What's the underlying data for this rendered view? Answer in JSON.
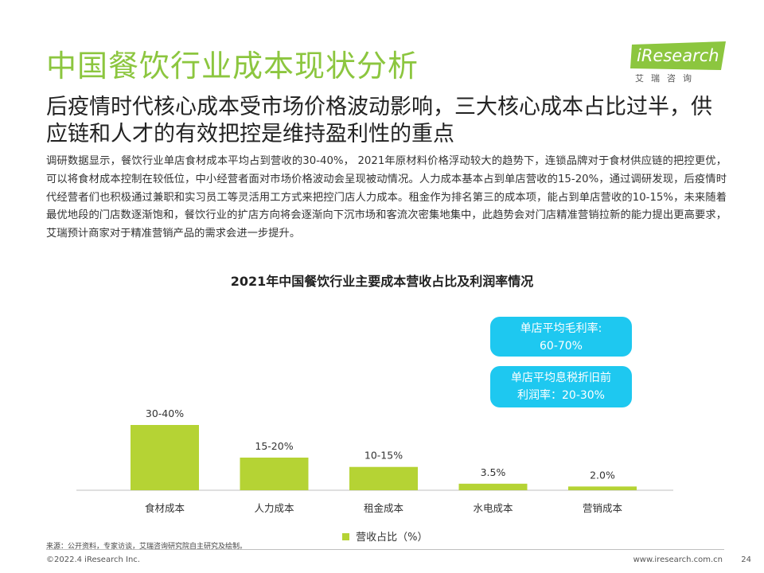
{
  "slide": {
    "title": "中国餐饮行业成本现状分析",
    "logo_brand": "iResearch",
    "logo_sub": "艾瑞咨询",
    "headline": "后疫情时代核心成本受市场价格波动影响，三大核心成本占比过半，供应链和人才的有效把控是维持盈利性的重点",
    "body": "调研数据显示，餐饮行业单店食材成本平均占到营收的30-40%，  2021年原材料价格浮动较大的趋势下，连锁品牌对于食材供应链的把控更优，可以将食材成本控制在较低位，中小经营者面对市场价格波动会呈现被动情况。人力成本基本占到单店营收的15-20%，通过调研发现，后疫情时代经营者们也积极通过兼职和实习员工等灵活用工方式来把控门店人力成本。租金作为排名第三的成本项，能占到单店营收的10-15%，未来随着最优地段的门店数逐渐饱和，餐饮行业的扩店方向将会逐渐向下沉市场和客流次密集地集中，此趋势会对门店精准营销拉新的能力提出更高要求，艾瑞预计商家对于精准营销产品的需求会进一步提升。",
    "callout_1_line1": "单店平均毛利率:",
    "callout_1_line2": "60-70%",
    "callout_2_line1": "单店平均息税折旧前",
    "callout_2_line2": "利润率：20-30%",
    "source": "来源：公开资料，专家访谈，艾瑞咨询研究院自主研究及绘制。",
    "copyright": "©2022.4 iResearch Inc.",
    "website": "www.iresearch.com.cn",
    "page_number": "24"
  },
  "colors": {
    "title": "#8cc63f",
    "bar": "#b5d334",
    "callout": "#1ec8f0",
    "logo": "#8cc63f"
  },
  "chart_data": {
    "type": "bar",
    "title": "2021年中国餐饮行业主要成本营收占比及利润率情况",
    "categories": [
      "食材成本",
      "人力成本",
      "租金成本",
      "水电成本",
      "营销成本"
    ],
    "values": [
      35,
      17.5,
      12.5,
      3.5,
      2.0
    ],
    "data_labels": [
      "30-40%",
      "15-20%",
      "10-15%",
      "3.5%",
      "2.0%"
    ],
    "series": [
      {
        "name": "营收占比（%）",
        "values": [
          35,
          17.5,
          12.5,
          3.5,
          2.0
        ]
      }
    ],
    "xlabel": "",
    "ylabel": "",
    "ylim": [
      0,
      35
    ],
    "grid": false,
    "legend": "bottom-center"
  }
}
